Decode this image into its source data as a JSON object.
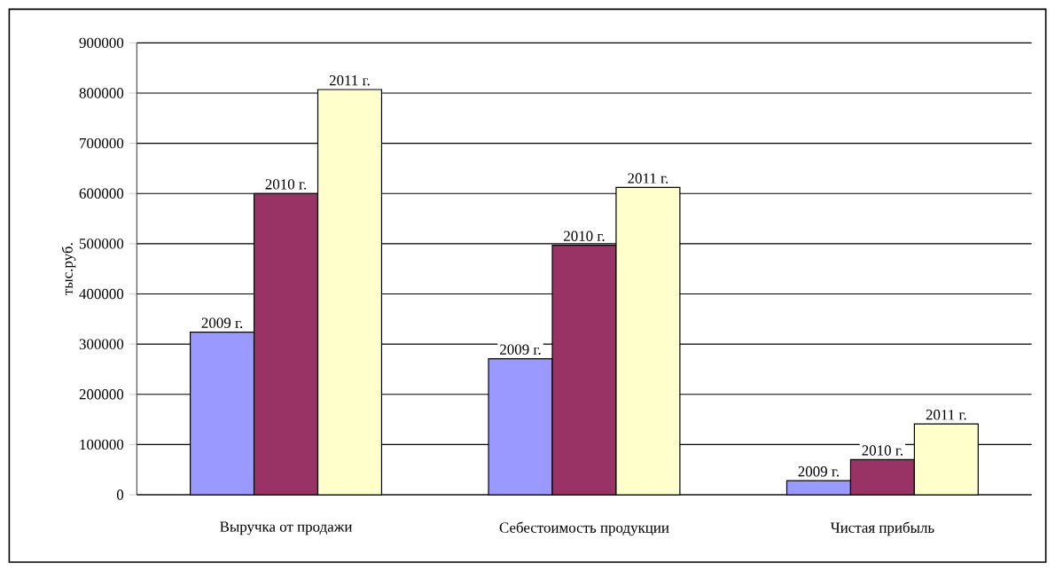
{
  "chart_data": {
    "type": "bar",
    "ylabel": "тыс.руб.",
    "categories": [
      "Выручка от продажи",
      "Себестоимость продукции",
      "Чистая прибыль"
    ],
    "series": [
      {
        "name": "2009 г.",
        "color": "#9999ff",
        "values": [
          324000,
          271000,
          28000
        ]
      },
      {
        "name": "2010 г.",
        "color": "#993366",
        "values": [
          600000,
          497000,
          70000
        ]
      },
      {
        "name": "2011 г.",
        "color": "#ffffcc",
        "values": [
          807000,
          612000,
          141000
        ]
      }
    ],
    "ylim": [
      0,
      900000
    ],
    "yticks": [
      0,
      100000,
      200000,
      300000,
      400000,
      500000,
      600000,
      700000,
      800000,
      900000
    ],
    "grid": "y",
    "legend": false
  }
}
